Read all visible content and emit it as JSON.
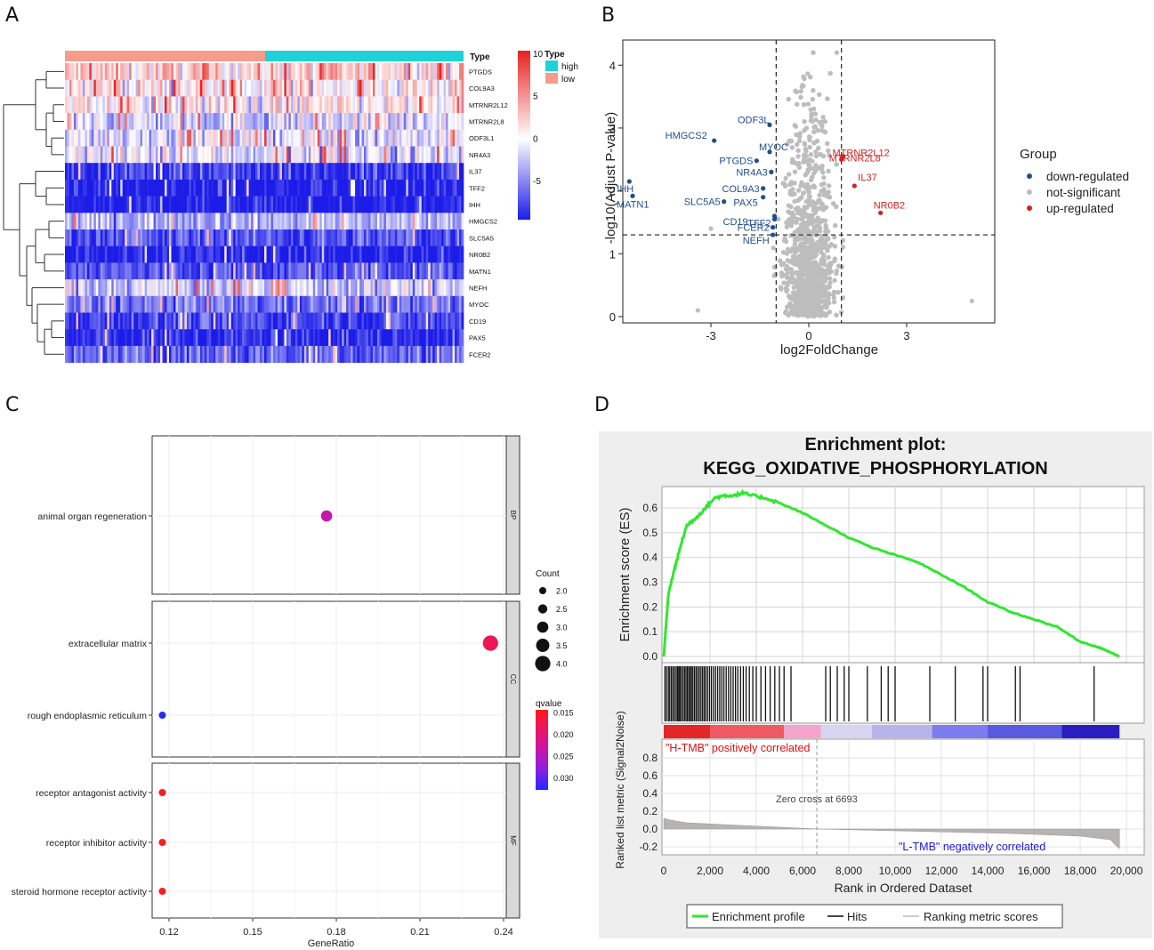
{
  "panels": {
    "a": "A",
    "b": "B",
    "c": "C",
    "d": "D"
  },
  "heatmap": {
    "type_header": "Type",
    "genes": [
      "PTGDS",
      "COL9A3",
      "MTRNR2L12",
      "MTRNR2L8",
      "ODF3L1",
      "NR4A3",
      "IL37",
      "TFF2",
      "IHH",
      "HMGCS2",
      "SLC5A5",
      "NR0B2",
      "MATN1",
      "NEFH",
      "MYOC",
      "CD19",
      "PAX5",
      "FCER2"
    ],
    "row_base": [
      2.0,
      1.0,
      0.4,
      -1.5,
      -0.6,
      -1.0,
      -7.0,
      -8.0,
      -8.5,
      -2.5,
      -6.0,
      -8.0,
      -6.0,
      -1.5,
      -5.0,
      -6.5,
      -7.5,
      -5.5
    ],
    "legend_title": "Type",
    "legend_items": [
      {
        "label": "high",
        "color": "#1fd1d8"
      },
      {
        "label": "low",
        "color": "#f59c8c"
      }
    ],
    "colorbar_ticks": [
      "10",
      "5",
      "0",
      "-5"
    ],
    "colors": {
      "high": "#e82222",
      "mid": "#ffffff",
      "low": "#1c1ce8"
    }
  },
  "volcano": {
    "xlabel": "log2FoldChange",
    "ylabel": "-log10(Adjust P-value)",
    "xticks": [
      "-3",
      "0",
      "3"
    ],
    "yticks": [
      "0",
      "1",
      "2",
      "3",
      "4"
    ],
    "legend_title": "Group",
    "legend_items": [
      {
        "label": "down-regulated",
        "color": "#1f4e8c"
      },
      {
        "label": "not-significant",
        "color": "#bdbdbd"
      },
      {
        "label": "up-regulated",
        "color": "#d62020"
      }
    ],
    "down_labels": [
      {
        "label": "ODF3L",
        "x": -1.2,
        "y": 3.05
      },
      {
        "label": "HMGCS2",
        "x": -2.9,
        "y": 2.8
      },
      {
        "label": "MYOC",
        "x": -1.2,
        "y": 2.62
      },
      {
        "label": "PTGDS",
        "x": -1.6,
        "y": 2.48
      },
      {
        "label": "NR4A3",
        "x": -1.15,
        "y": 2.3
      },
      {
        "label": "COL9A3",
        "x": -1.4,
        "y": 2.04
      },
      {
        "label": "PAX5",
        "x": -1.4,
        "y": 1.9
      },
      {
        "label": "SLC5A5",
        "x": -2.6,
        "y": 1.83
      },
      {
        "label": "CD19",
        "x": -1.05,
        "y": 1.6
      },
      {
        "label": "TFF2",
        "x": -1.05,
        "y": 1.55
      },
      {
        "label": "FCER2",
        "x": -1.1,
        "y": 1.42
      },
      {
        "label": "NEFH",
        "x": -1.1,
        "y": 1.3
      },
      {
        "label": "IHH",
        "x": -5.5,
        "y": 2.15
      },
      {
        "label": "MATN1",
        "x": -5.4,
        "y": 1.92
      }
    ],
    "up_labels": [
      {
        "label": "MTRNR2L12",
        "x": 1.05,
        "y": 2.55
      },
      {
        "label": "MTRNR2L8",
        "x": 1.0,
        "y": 2.5
      },
      {
        "label": "IL37",
        "x": 1.4,
        "y": 2.08
      },
      {
        "label": "NR0B2",
        "x": 2.2,
        "y": 1.65
      }
    ],
    "chart_data": {
      "type": "scatter",
      "xlim": [
        -5.7,
        5.7
      ],
      "ylim": [
        -0.1,
        4.4
      ],
      "thresholds": {
        "x": [
          -1,
          1
        ],
        "y": 1.3
      },
      "ns_extreme": [
        {
          "x": 5.0,
          "y": 0.25
        },
        {
          "x": -3.4,
          "y": 0.1
        },
        {
          "x": -3.0,
          "y": 1.4
        }
      ]
    }
  },
  "dotplot": {
    "xlabel": "GeneRatio",
    "xticks": [
      "0.12",
      "0.15",
      "0.18",
      "0.21",
      "0.24"
    ],
    "facets": [
      {
        "name": "BP",
        "terms": [
          {
            "term": "animal organ regeneration",
            "ratio": 0.1765,
            "count": 3,
            "q": 0.0235
          }
        ]
      },
      {
        "name": "CC",
        "terms": [
          {
            "term": "extracellular matrix",
            "ratio": 0.2353,
            "count": 4,
            "q": 0.0185
          },
          {
            "term": "rough endoplasmic reticulum",
            "ratio": 0.1176,
            "count": 2,
            "q": 0.032
          }
        ]
      },
      {
        "name": "MF",
        "terms": [
          {
            "term": "receptor antagonist activity",
            "ratio": 0.1176,
            "count": 2,
            "q": 0.0152
          },
          {
            "term": "receptor inhibitor activity",
            "ratio": 0.1176,
            "count": 2,
            "q": 0.0152
          },
          {
            "term": "steroid hormone receptor activity",
            "ratio": 0.1176,
            "count": 2,
            "q": 0.0152
          }
        ]
      }
    ],
    "count_title": "Count",
    "count_labels": [
      "2.0",
      "2.5",
      "3.0",
      "3.5",
      "4.0"
    ],
    "q_title": "qvalue",
    "q_labels": [
      "0.015",
      "0.020",
      "0.025",
      "0.030"
    ]
  },
  "gsea": {
    "title1": "Enrichment plot:",
    "title2": "KEGG_OXIDATIVE_PHOSPHORYLATION",
    "es_ylabel": "Enrichment score (ES)",
    "es_yticks": [
      "0.0",
      "0.1",
      "0.2",
      "0.3",
      "0.4",
      "0.5",
      "0.6"
    ],
    "rank_ylabel": "Ranked list metric (Signal2Noise)",
    "rank_yticks": [
      "0.8",
      "0.6",
      "0.4",
      "0.2",
      "0.0",
      "-0.2"
    ],
    "xlabel": "Rank in Ordered Dataset",
    "xticks": [
      "0",
      "2,000",
      "4,000",
      "6,000",
      "8,000",
      "10,000",
      "12,000",
      "14,000",
      "16,000",
      "18,000",
      "20,000"
    ],
    "pos_label": "\"H-TMB\" positively correlated",
    "neg_label": "\"L-TMB\" negatively correlated",
    "zero_cross": "Zero cross at 6693",
    "legend": [
      "Enrichment profile",
      "Hits",
      "Ranking metric scores"
    ],
    "chart_data": {
      "type": "line",
      "x": [
        0,
        200,
        400,
        600,
        800,
        1000,
        1400,
        1800,
        2200,
        2600,
        3000,
        3400,
        3800,
        4400,
        5000,
        6000,
        7000,
        8000,
        9000,
        10000,
        11000,
        12000,
        13000,
        14000,
        15000,
        16000,
        17000,
        18000,
        18700,
        19000,
        19700
      ],
      "es": [
        0.0,
        0.25,
        0.33,
        0.4,
        0.47,
        0.53,
        0.56,
        0.6,
        0.64,
        0.65,
        0.65,
        0.66,
        0.65,
        0.64,
        0.62,
        0.58,
        0.53,
        0.48,
        0.44,
        0.41,
        0.38,
        0.33,
        0.28,
        0.22,
        0.18,
        0.15,
        0.12,
        0.06,
        0.04,
        0.03,
        0.0
      ],
      "hits": [
        50,
        120,
        200,
        260,
        330,
        400,
        470,
        540,
        600,
        650,
        700,
        760,
        830,
        900,
        960,
        1020,
        1080,
        1140,
        1200,
        1260,
        1330,
        1400,
        1470,
        1540,
        1610,
        1680,
        1750,
        1820,
        1900,
        1980,
        2060,
        2150,
        2240,
        2330,
        2420,
        2510,
        2600,
        2700,
        2800,
        2900,
        3000,
        3100,
        3200,
        3320,
        3440,
        3560,
        3700,
        3850,
        4000,
        4200,
        4400,
        4600,
        4800,
        5000,
        5200,
        5500,
        7000,
        7200,
        7500,
        7800,
        8000,
        8800,
        9400,
        9700,
        10000,
        11500,
        12600,
        13800,
        14000,
        15200,
        15400,
        18600
      ],
      "xlim": [
        0,
        20000
      ]
    }
  }
}
